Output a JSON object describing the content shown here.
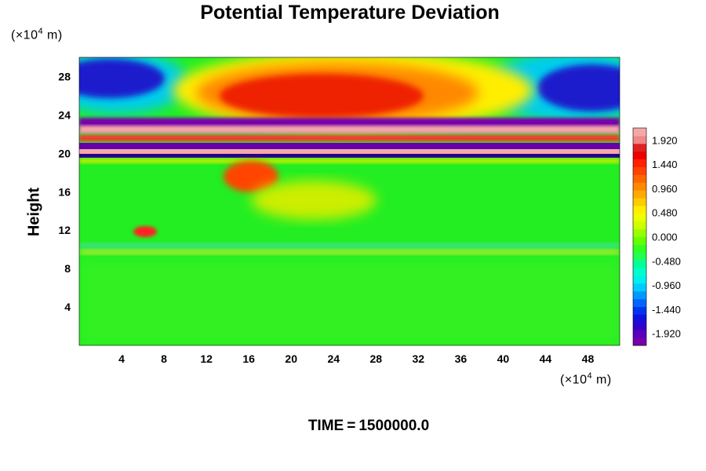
{
  "chart_data": {
    "type": "heatmap",
    "title": "Potential Temperature Deviation",
    "xlabel": "",
    "ylabel": "Height",
    "x_unit_prefix": "(×10",
    "x_unit_exp": "4",
    "x_unit_suffix": " m)",
    "y_unit_prefix": "(×10",
    "y_unit_exp": "4",
    "y_unit_suffix": " m)",
    "xlim": [
      0,
      51
    ],
    "ylim": [
      0,
      30
    ],
    "x_ticks": [
      4,
      8,
      12,
      16,
      20,
      24,
      28,
      32,
      36,
      40,
      44,
      48
    ],
    "y_ticks": [
      4,
      8,
      12,
      16,
      20,
      24,
      28
    ],
    "colorbar": {
      "ticks": [
        "1.920",
        "1.440",
        "0.960",
        "0.480",
        "0.000",
        "-0.480",
        "-0.960",
        "-1.440",
        "-1.920"
      ],
      "range": [
        -2.16,
        2.16
      ]
    },
    "features": [
      {
        "region": "upper warm anomaly",
        "x": [
          14,
          40
        ],
        "y": [
          22,
          30
        ],
        "value": 1.5
      },
      {
        "region": "upper-left cold anomaly",
        "x": [
          0,
          9
        ],
        "y": [
          25,
          30
        ],
        "value": -1.8
      },
      {
        "region": "upper-right cold anomaly",
        "x": [
          40,
          51
        ],
        "y": [
          23,
          30
        ],
        "value": -1.8
      },
      {
        "region": "stratified layers",
        "x": [
          0,
          51
        ],
        "y": [
          19.5,
          22.5
        ],
        "value": "alternating ±2"
      },
      {
        "region": "mid-level warm patch",
        "x": [
          14,
          20
        ],
        "y": [
          15,
          18.5
        ],
        "value": 1.3
      },
      {
        "region": "background troposphere",
        "x": [
          0,
          51
        ],
        "y": [
          0,
          19
        ],
        "value": 0.05
      }
    ]
  },
  "time": {
    "label": "TIME",
    "equals": "=",
    "value": "1500000.0"
  }
}
